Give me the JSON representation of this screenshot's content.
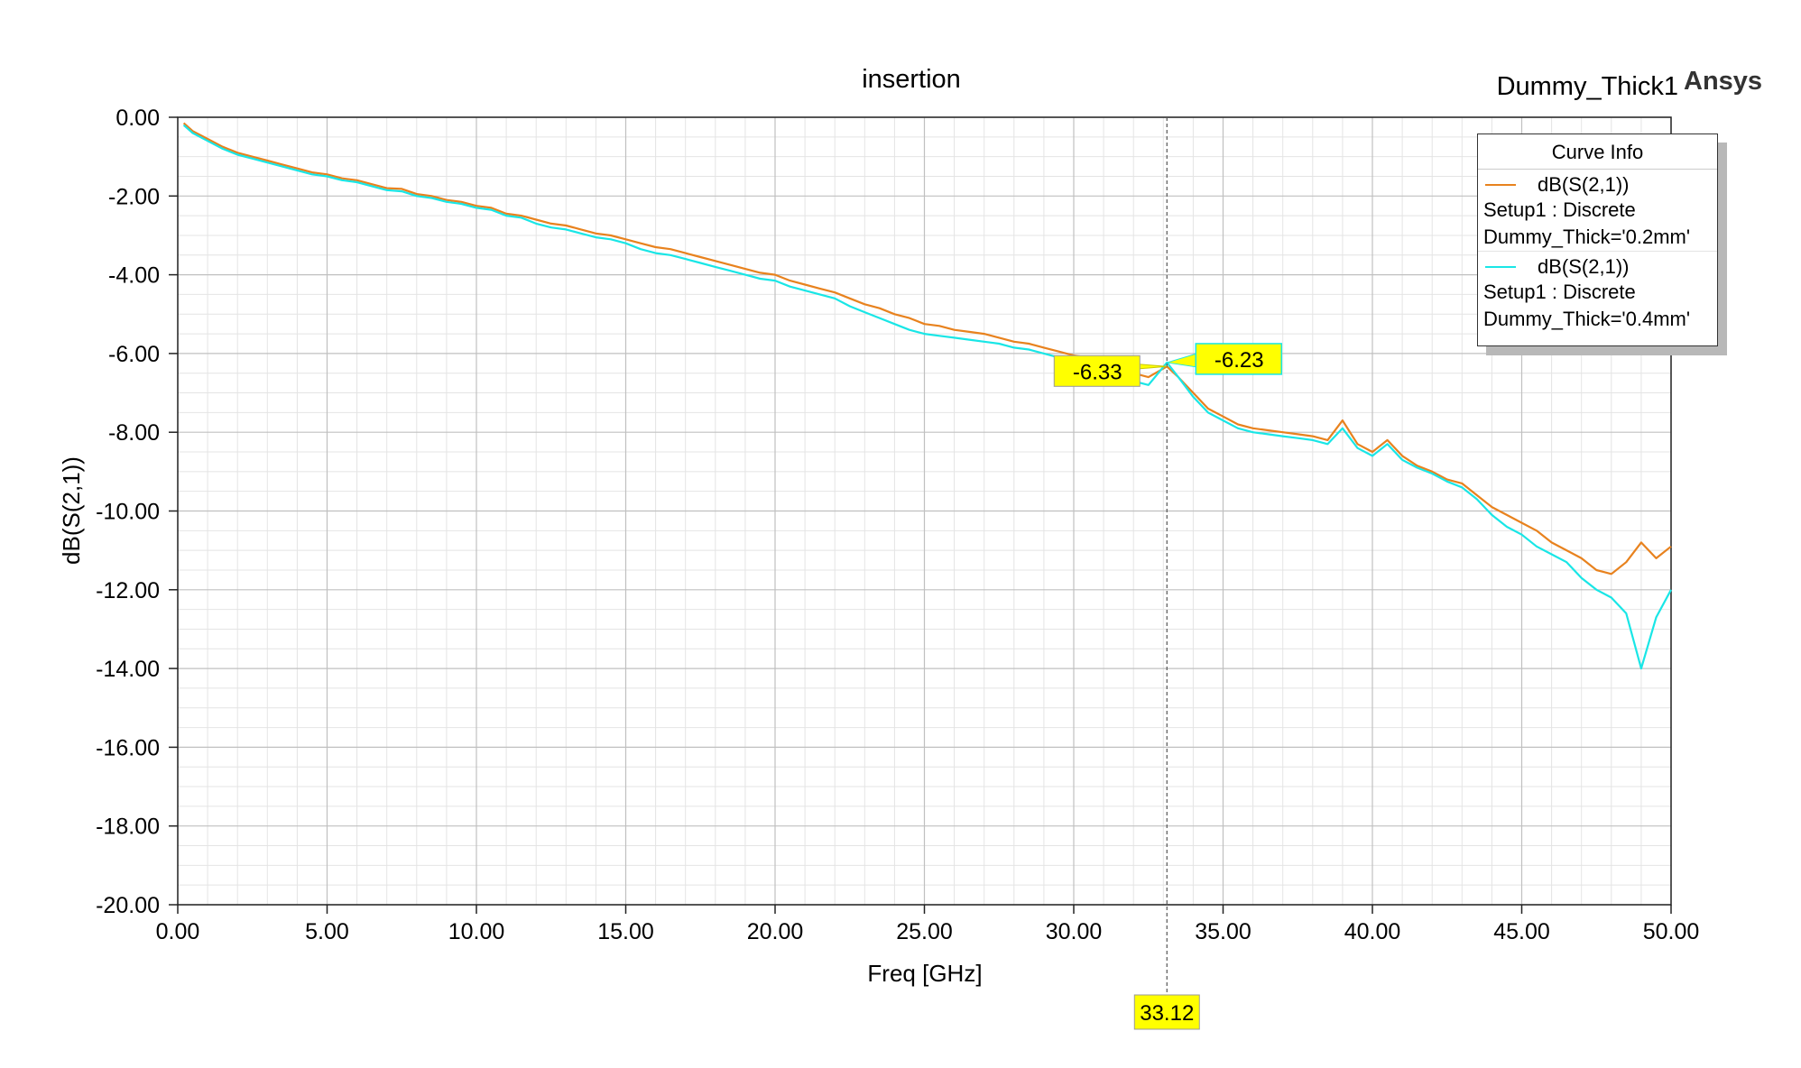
{
  "header": {
    "title": "insertion",
    "project": "Dummy_Thick1",
    "brand": "Ansys"
  },
  "legend": {
    "heading": "Curve Info",
    "entries": [
      {
        "trace": "dB(S(2,1))",
        "setup": "Setup1 : Discrete",
        "variation": "Dummy_Thick='0.2mm'"
      },
      {
        "trace": "dB(S(2,1))",
        "setup": "Setup1 : Discrete",
        "variation": "Dummy_Thick='0.4mm'"
      }
    ]
  },
  "colors": {
    "series_0": "#e8821e",
    "series_1": "#19e6e6",
    "marker_fill": "#ffff00",
    "grid_major": "#c0c0c0",
    "grid_minor": "#e4e4e4"
  },
  "chart_data": {
    "type": "line",
    "title": "insertion",
    "xlabel": "Freq [GHz]",
    "ylabel": "dB(S(2,1))",
    "xlim": [
      0,
      50
    ],
    "ylim": [
      -20,
      0
    ],
    "xticks": [
      "0.00",
      "5.00",
      "10.00",
      "15.00",
      "20.00",
      "25.00",
      "30.00",
      "35.00",
      "40.00",
      "45.00",
      "50.00"
    ],
    "yticks": [
      "0.00",
      "-2.00",
      "-4.00",
      "-6.00",
      "-8.00",
      "-10.00",
      "-12.00",
      "-14.00",
      "-16.00",
      "-18.00",
      "-20.00"
    ],
    "grid": true,
    "legend_position": "top-right",
    "series": [
      {
        "name": "Dummy_Thick='0.2mm'",
        "x": [
          0.2,
          0.5,
          1.0,
          1.5,
          2.0,
          2.5,
          3.0,
          3.5,
          4.0,
          4.5,
          5.0,
          5.5,
          6.0,
          6.5,
          7.0,
          7.5,
          8.0,
          8.5,
          9.0,
          9.5,
          10.0,
          10.5,
          11.0,
          11.5,
          12.0,
          12.5,
          13.0,
          13.5,
          14.0,
          14.5,
          15.0,
          15.5,
          16.0,
          16.5,
          17.0,
          17.5,
          18.0,
          18.5,
          19.0,
          19.5,
          20.0,
          20.5,
          21.0,
          21.5,
          22.0,
          22.5,
          23.0,
          23.5,
          24.0,
          24.5,
          25.0,
          25.5,
          26.0,
          26.5,
          27.0,
          27.5,
          28.0,
          28.5,
          29.0,
          29.5,
          30.0,
          30.5,
          31.0,
          31.5,
          32.0,
          32.5,
          33.12,
          33.5,
          34.0,
          34.5,
          35.0,
          35.5,
          36.0,
          36.5,
          37.0,
          37.5,
          38.0,
          38.5,
          39.0,
          39.5,
          40.0,
          40.5,
          41.0,
          41.5,
          42.0,
          42.5,
          43.0,
          43.5,
          44.0,
          44.5,
          45.0,
          45.5,
          46.0,
          46.5,
          47.0,
          47.5,
          48.0,
          48.5,
          49.0,
          49.5,
          50.0
        ],
        "y": [
          -0.15,
          -0.35,
          -0.55,
          -0.75,
          -0.9,
          -1.0,
          -1.1,
          -1.2,
          -1.3,
          -1.4,
          -1.45,
          -1.55,
          -1.6,
          -1.7,
          -1.8,
          -1.82,
          -1.95,
          -2.0,
          -2.1,
          -2.15,
          -2.25,
          -2.3,
          -2.45,
          -2.5,
          -2.6,
          -2.7,
          -2.75,
          -2.85,
          -2.95,
          -3.0,
          -3.1,
          -3.2,
          -3.3,
          -3.35,
          -3.45,
          -3.55,
          -3.65,
          -3.75,
          -3.85,
          -3.95,
          -4.0,
          -4.15,
          -4.25,
          -4.35,
          -4.45,
          -4.6,
          -4.75,
          -4.85,
          -5.0,
          -5.1,
          -5.25,
          -5.3,
          -5.4,
          -5.45,
          -5.5,
          -5.6,
          -5.7,
          -5.75,
          -5.85,
          -5.95,
          -6.05,
          -6.1,
          -6.3,
          -6.4,
          -6.5,
          -6.6,
          -6.33,
          -6.6,
          -7.0,
          -7.4,
          -7.6,
          -7.8,
          -7.9,
          -7.95,
          -8.0,
          -8.05,
          -8.1,
          -8.2,
          -7.7,
          -8.3,
          -8.5,
          -8.2,
          -8.6,
          -8.85,
          -9.0,
          -9.2,
          -9.3,
          -9.6,
          -9.9,
          -10.1,
          -10.3,
          -10.5,
          -10.8,
          -11.0,
          -11.2,
          -11.5,
          -11.6,
          -11.3,
          -10.8,
          -11.2,
          -10.9
        ]
      },
      {
        "name": "Dummy_Thick='0.4mm'",
        "x": [
          0.2,
          0.5,
          1.0,
          1.5,
          2.0,
          2.5,
          3.0,
          3.5,
          4.0,
          4.5,
          5.0,
          5.5,
          6.0,
          6.5,
          7.0,
          7.5,
          8.0,
          8.5,
          9.0,
          9.5,
          10.0,
          10.5,
          11.0,
          11.5,
          12.0,
          12.5,
          13.0,
          13.5,
          14.0,
          14.5,
          15.0,
          15.5,
          16.0,
          16.5,
          17.0,
          17.5,
          18.0,
          18.5,
          19.0,
          19.5,
          20.0,
          20.5,
          21.0,
          21.5,
          22.0,
          22.5,
          23.0,
          23.5,
          24.0,
          24.5,
          25.0,
          25.5,
          26.0,
          26.5,
          27.0,
          27.5,
          28.0,
          28.5,
          29.0,
          29.5,
          30.0,
          30.5,
          31.0,
          31.5,
          32.0,
          32.5,
          33.12,
          33.5,
          34.0,
          34.5,
          35.0,
          35.5,
          36.0,
          36.5,
          37.0,
          37.5,
          38.0,
          38.5,
          39.0,
          39.5,
          40.0,
          40.5,
          41.0,
          41.5,
          42.0,
          42.5,
          43.0,
          43.5,
          44.0,
          44.5,
          45.0,
          45.5,
          46.0,
          46.5,
          47.0,
          47.5,
          48.0,
          48.5,
          49.0,
          49.5,
          50.0
        ],
        "y": [
          -0.2,
          -0.4,
          -0.6,
          -0.8,
          -0.95,
          -1.05,
          -1.15,
          -1.25,
          -1.35,
          -1.45,
          -1.5,
          -1.6,
          -1.65,
          -1.75,
          -1.85,
          -1.88,
          -2.0,
          -2.05,
          -2.15,
          -2.2,
          -2.3,
          -2.35,
          -2.5,
          -2.55,
          -2.7,
          -2.8,
          -2.85,
          -2.95,
          -3.05,
          -3.1,
          -3.2,
          -3.35,
          -3.45,
          -3.5,
          -3.6,
          -3.7,
          -3.8,
          -3.9,
          -4.0,
          -4.1,
          -4.15,
          -4.3,
          -4.4,
          -4.5,
          -4.6,
          -4.8,
          -4.95,
          -5.1,
          -5.25,
          -5.4,
          -5.5,
          -5.55,
          -5.6,
          -5.65,
          -5.7,
          -5.75,
          -5.85,
          -5.9,
          -6.0,
          -6.1,
          -6.2,
          -6.3,
          -6.5,
          -6.6,
          -6.7,
          -6.8,
          -6.23,
          -6.6,
          -7.1,
          -7.5,
          -7.7,
          -7.9,
          -8.0,
          -8.05,
          -8.1,
          -8.15,
          -8.2,
          -8.3,
          -7.9,
          -8.4,
          -8.6,
          -8.3,
          -8.7,
          -8.9,
          -9.05,
          -9.25,
          -9.4,
          -9.7,
          -10.1,
          -10.4,
          -10.6,
          -10.9,
          -11.1,
          -11.3,
          -11.7,
          -12.0,
          -12.2,
          -12.6,
          -14.0,
          -12.7,
          -12.0
        ]
      }
    ],
    "markers": [
      {
        "x": 33.12,
        "x_label": "33.12",
        "labels": [
          "-6.33",
          "-6.23"
        ]
      }
    ]
  }
}
